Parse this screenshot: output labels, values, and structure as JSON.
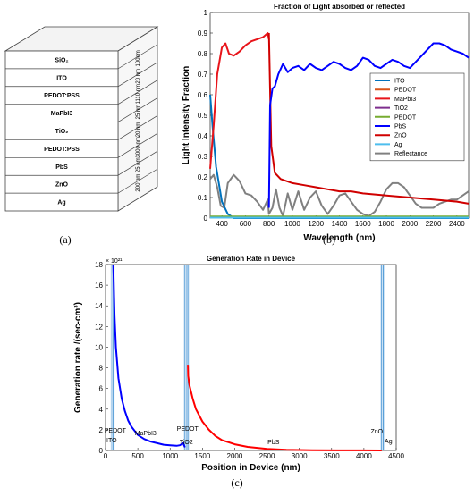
{
  "captions": {
    "a": "(a)",
    "b": "(b)",
    "c": "(c)"
  },
  "device_stack": {
    "layers": [
      "SiO₂",
      "ITO",
      "PEDOT:PSS",
      "MaPbI3",
      "TiO₂",
      "PEDOT:PSS",
      "PbS",
      "ZnO",
      "Ag"
    ],
    "thicknesses": [
      "100nm",
      "20 nm",
      "1110 nm",
      "25 nm",
      "20 nm",
      "3000 nm",
      "25 nm",
      "200 nm"
    ]
  },
  "chart_data": [
    {
      "type": "line",
      "title": "Fraction of Light absorbed or reflected",
      "xlabel": "Wavelength (nm)",
      "ylabel": "Light Intensity Fraction",
      "xlim": [
        300,
        2500
      ],
      "ylim": [
        0,
        1
      ],
      "x_ticks": [
        "400",
        "600",
        "800",
        "1000",
        "1200",
        "1400",
        "1600",
        "1800",
        "2000",
        "2200",
        "2400"
      ],
      "y_ticks": [
        "0",
        "0.1",
        "0.2",
        "0.3",
        "0.4",
        "0.5",
        "0.6",
        "0.7",
        "0.8",
        "0.9",
        "1"
      ],
      "legend_position": "center-right",
      "series": [
        {
          "name": "ITO",
          "color": "#0072BD",
          "x": [
            300,
            320,
            350,
            400,
            450,
            500,
            2500
          ],
          "y": [
            0.6,
            0.45,
            0.25,
            0.08,
            0.02,
            0.0,
            0.0
          ]
        },
        {
          "name": "PEDOT",
          "color": "#D95319",
          "x": [
            300,
            2500
          ],
          "y": [
            0.005,
            0.005
          ]
        },
        {
          "name": "MaPbI3",
          "color": "#E8141A",
          "x": [
            300,
            330,
            360,
            400,
            430,
            460,
            500,
            550,
            600,
            650,
            700,
            750,
            790,
            800
          ],
          "y": [
            0.24,
            0.45,
            0.7,
            0.83,
            0.85,
            0.8,
            0.79,
            0.81,
            0.84,
            0.86,
            0.87,
            0.88,
            0.9,
            0.87
          ]
        },
        {
          "name": "TiO2",
          "color": "#7E2F8E",
          "x": [
            300,
            2500
          ],
          "y": [
            0.003,
            0.003
          ]
        },
        {
          "name": "PEDOT",
          "color": "#77AC30",
          "x": [
            300,
            2500
          ],
          "y": [
            0.008,
            0.008
          ]
        },
        {
          "name": "PbS",
          "color": "#0000FF",
          "x": [
            800,
            810,
            830,
            850,
            880,
            920,
            960,
            1000,
            1050,
            1100,
            1150,
            1200,
            1250,
            1300,
            1350,
            1400,
            1450,
            1500,
            1550,
            1600,
            1650,
            1700,
            1750,
            1800,
            1850,
            1900,
            1950,
            2000,
            2050,
            2100,
            2150,
            2200,
            2250,
            2300,
            2350,
            2400,
            2450,
            2500
          ],
          "y": [
            0.05,
            0.55,
            0.63,
            0.64,
            0.7,
            0.75,
            0.71,
            0.73,
            0.74,
            0.72,
            0.75,
            0.73,
            0.72,
            0.74,
            0.76,
            0.75,
            0.73,
            0.72,
            0.74,
            0.78,
            0.77,
            0.74,
            0.73,
            0.75,
            0.77,
            0.76,
            0.74,
            0.73,
            0.76,
            0.79,
            0.82,
            0.85,
            0.85,
            0.84,
            0.82,
            0.81,
            0.8,
            0.78
          ]
        },
        {
          "name": "ZnO",
          "color": "#D00000",
          "x": [
            800,
            820,
            850,
            900,
            1000,
            1100,
            1200,
            1300,
            1400,
            1500,
            1600,
            1800,
            2000,
            2200,
            2400,
            2500
          ],
          "y": [
            0.9,
            0.35,
            0.22,
            0.19,
            0.17,
            0.16,
            0.15,
            0.14,
            0.13,
            0.13,
            0.12,
            0.11,
            0.1,
            0.09,
            0.08,
            0.07
          ]
        },
        {
          "name": "Ag",
          "color": "#4DBEEE",
          "x": [
            300,
            2500
          ],
          "y": [
            0.002,
            0.002
          ]
        },
        {
          "name": "Reflectance",
          "color": "#808080",
          "x": [
            300,
            330,
            360,
            390,
            420,
            450,
            500,
            550,
            600,
            650,
            700,
            750,
            790,
            800,
            830,
            860,
            890,
            920,
            960,
            1000,
            1050,
            1100,
            1150,
            1200,
            1250,
            1300,
            1350,
            1400,
            1450,
            1500,
            1550,
            1600,
            1650,
            1700,
            1750,
            1800,
            1850,
            1900,
            1950,
            2000,
            2050,
            2100,
            2150,
            2200,
            2250,
            2300,
            2350,
            2400,
            2450,
            2500
          ],
          "y": [
            0.19,
            0.21,
            0.15,
            0.06,
            0.05,
            0.17,
            0.21,
            0.18,
            0.12,
            0.11,
            0.08,
            0.04,
            0.09,
            0.02,
            0.05,
            0.14,
            0.05,
            0.01,
            0.12,
            0.04,
            0.13,
            0.04,
            0.1,
            0.13,
            0.06,
            0.02,
            0.06,
            0.11,
            0.12,
            0.08,
            0.04,
            0.02,
            0.01,
            0.03,
            0.08,
            0.14,
            0.17,
            0.17,
            0.15,
            0.11,
            0.07,
            0.05,
            0.05,
            0.05,
            0.07,
            0.08,
            0.09,
            0.09,
            0.11,
            0.13
          ]
        }
      ]
    },
    {
      "type": "line",
      "title": "Generation Rate in Device",
      "xlabel": "Position in Device (nm)",
      "ylabel": "Generation rate /(sec-cm³)",
      "y_multiplier": "× 10²¹",
      "xlim": [
        0,
        4500
      ],
      "ylim": [
        0,
        18
      ],
      "x_ticks": [
        "0",
        "500",
        "1000",
        "1500",
        "2000",
        "2500",
        "3000",
        "3500",
        "4000",
        "4500"
      ],
      "y_ticks": [
        "0",
        "2",
        "4",
        "6",
        "8",
        "10",
        "12",
        "14",
        "16",
        "18"
      ],
      "layer_labels": [
        "ITO",
        "PEDOT",
        "MaPbI3",
        "TiO2",
        "PEDOT",
        "PbS",
        "ZnO",
        "Ag"
      ],
      "layer_boundaries": [
        100,
        120,
        1230,
        1255,
        1275,
        4275,
        4300
      ],
      "series": [
        {
          "name": "MaPbI3",
          "color": "#0000FF",
          "x": [
            120,
            140,
            160,
            200,
            250,
            300,
            350,
            400,
            500,
            600,
            700,
            800,
            900,
            1000,
            1100,
            1150,
            1200,
            1230
          ],
          "y": [
            18,
            13,
            10,
            7,
            5,
            3.8,
            2.9,
            2.3,
            1.5,
            1.1,
            0.85,
            0.7,
            0.55,
            0.5,
            0.45,
            0.5,
            0.7,
            0.3
          ]
        },
        {
          "name": "PbS",
          "color": "#FF0000",
          "x": [
            1275,
            1280,
            1300,
            1350,
            1400,
            1500,
            1600,
            1700,
            1800,
            2000,
            2200,
            2500,
            2800,
            3200,
            3600,
            4000,
            4275
          ],
          "y": [
            8.3,
            7.2,
            6.3,
            5.0,
            4.0,
            2.8,
            2.0,
            1.4,
            1.0,
            0.6,
            0.35,
            0.15,
            0.07,
            0.03,
            0.01,
            0.005,
            0.0
          ]
        }
      ]
    }
  ]
}
